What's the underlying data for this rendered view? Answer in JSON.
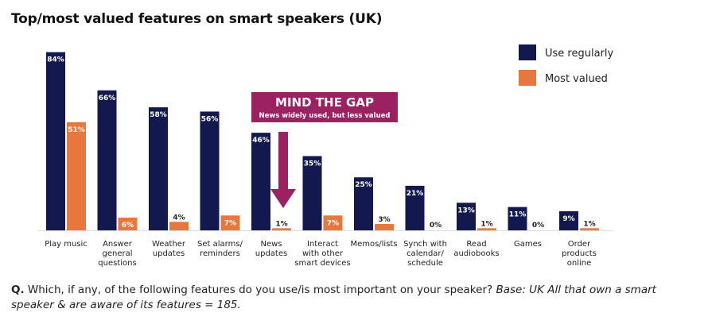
{
  "title": "Top/most valued features on smart speakers (UK)",
  "chart_data": {
    "type": "bar",
    "title": "Top/most valued features on smart speakers (UK)",
    "categories": [
      [
        "Play music"
      ],
      [
        "Answer",
        "general",
        "questions"
      ],
      [
        "Weather",
        "updates"
      ],
      [
        "Set alarms/",
        "reminders"
      ],
      [
        "News",
        "updates"
      ],
      [
        "Interact",
        "with other",
        "smart devices"
      ],
      [
        "Memos/lists"
      ],
      [
        "Synch with",
        "calendar/",
        "schedule"
      ],
      [
        "Read",
        "audiobooks"
      ],
      [
        "Games"
      ],
      [
        "Order",
        "products",
        "online"
      ]
    ],
    "series": [
      {
        "name": "Use regularly",
        "color": "#13194e",
        "values": [
          84,
          66,
          58,
          56,
          46,
          35,
          25,
          21,
          13,
          11,
          9
        ]
      },
      {
        "name": "Most valued",
        "color": "#e8773d",
        "values": [
          51,
          6,
          4,
          7,
          1,
          7,
          3,
          0,
          1,
          0,
          1
        ]
      }
    ],
    "value_labels": {
      "Use regularly": [
        "84%",
        "66%",
        "58%",
        "56%",
        "46%",
        "35%",
        "25%",
        "21%",
        "13%",
        "11%",
        "9%"
      ],
      "Most valued": [
        "51%",
        "6%",
        "4%",
        "7%",
        "1%",
        "7%",
        "3%",
        "0%",
        "1%",
        "0%",
        "1%"
      ]
    },
    "ylim": [
      0,
      88
    ],
    "legend_position": "top-right",
    "grid": false,
    "annotation": {
      "headline": "MIND THE GAP",
      "subtext": "News widely used, but less valued",
      "color": "#9b2163"
    }
  },
  "footnote": {
    "q_label": "Q.",
    "question": "Which, if any, of the following features do you use/is most important on your speaker?",
    "base": "Base: UK All that own a smart speaker & are aware of its features = 185."
  }
}
